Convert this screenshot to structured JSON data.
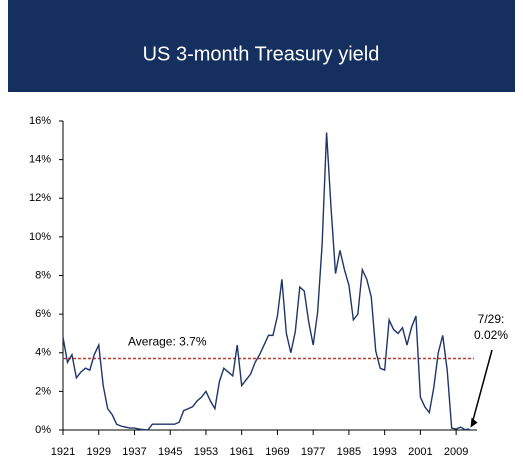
{
  "chart_data": {
    "type": "line",
    "title": "US 3-month Treasury yield",
    "x": [
      1921,
      1922,
      1923,
      1924,
      1925,
      1926,
      1927,
      1928,
      1929,
      1930,
      1931,
      1932,
      1933,
      1934,
      1935,
      1936,
      1937,
      1938,
      1939,
      1940,
      1941,
      1942,
      1943,
      1944,
      1945,
      1946,
      1947,
      1948,
      1949,
      1950,
      1951,
      1952,
      1953,
      1954,
      1955,
      1956,
      1957,
      1958,
      1959,
      1960,
      1961,
      1962,
      1963,
      1964,
      1965,
      1966,
      1967,
      1968,
      1969,
      1970,
      1971,
      1972,
      1973,
      1974,
      1975,
      1976,
      1977,
      1978,
      1979,
      1980,
      1981,
      1982,
      1983,
      1984,
      1985,
      1986,
      1987,
      1988,
      1989,
      1990,
      1991,
      1992,
      1993,
      1994,
      1995,
      1996,
      1997,
      1998,
      1999,
      2000,
      2001,
      2002,
      2003,
      2004,
      2005,
      2006,
      2007,
      2008,
      2009,
      2010,
      2011,
      2012
    ],
    "series": [
      {
        "color": "#1f3568",
        "values": [
          4.8,
          3.5,
          3.9,
          2.7,
          3.0,
          3.2,
          3.1,
          3.9,
          4.4,
          2.3,
          1.1,
          0.8,
          0.3,
          0.2,
          0.15,
          0.1,
          0.1,
          0.05,
          0.02,
          0.0,
          0.3,
          0.3,
          0.3,
          0.3,
          0.3,
          0.3,
          0.4,
          1.0,
          1.1,
          1.2,
          1.5,
          1.7,
          2.0,
          1.5,
          1.1,
          2.5,
          3.2,
          3.0,
          2.8,
          4.4,
          2.3,
          2.6,
          2.9,
          3.5,
          3.9,
          4.4,
          4.9,
          4.9,
          5.9,
          7.8,
          5.0,
          4.0,
          5.1,
          7.4,
          7.2,
          5.6,
          4.4,
          6.1,
          9.6,
          15.4,
          11.5,
          8.1,
          9.3,
          8.3,
          7.5,
          5.7,
          6.0,
          8.3,
          7.8,
          6.9,
          4.1,
          3.2,
          3.1,
          5.7,
          5.2,
          5.0,
          5.3,
          4.4,
          5.3,
          5.9,
          1.7,
          1.2,
          0.9,
          2.2,
          4.0,
          4.9,
          3.1,
          0.1,
          0.05,
          0.15,
          0.02,
          0.05
        ]
      }
    ],
    "xlim": [
      1921,
      2013
    ],
    "xticks": [
      1921,
      1929,
      1937,
      1945,
      1953,
      1961,
      1969,
      1977,
      1985,
      1993,
      2001,
      2009
    ],
    "ylim": [
      0,
      16
    ],
    "yticks": [
      {
        "value": 0,
        "label": "0%"
      },
      {
        "value": 2,
        "label": "2%"
      },
      {
        "value": 4,
        "label": "4%"
      },
      {
        "value": 6,
        "label": "6%"
      },
      {
        "value": 8,
        "label": "8%"
      },
      {
        "value": 10,
        "label": "10%"
      },
      {
        "value": 12,
        "label": "12%"
      },
      {
        "value": 14,
        "label": "14%"
      },
      {
        "value": 16,
        "label": "16%"
      }
    ],
    "average": {
      "value": 3.7,
      "label": "Average: 3.7%",
      "color": "#c0392b"
    },
    "latest": {
      "value": 0.02,
      "date_label": "7/29:",
      "label": "0.02%"
    }
  }
}
